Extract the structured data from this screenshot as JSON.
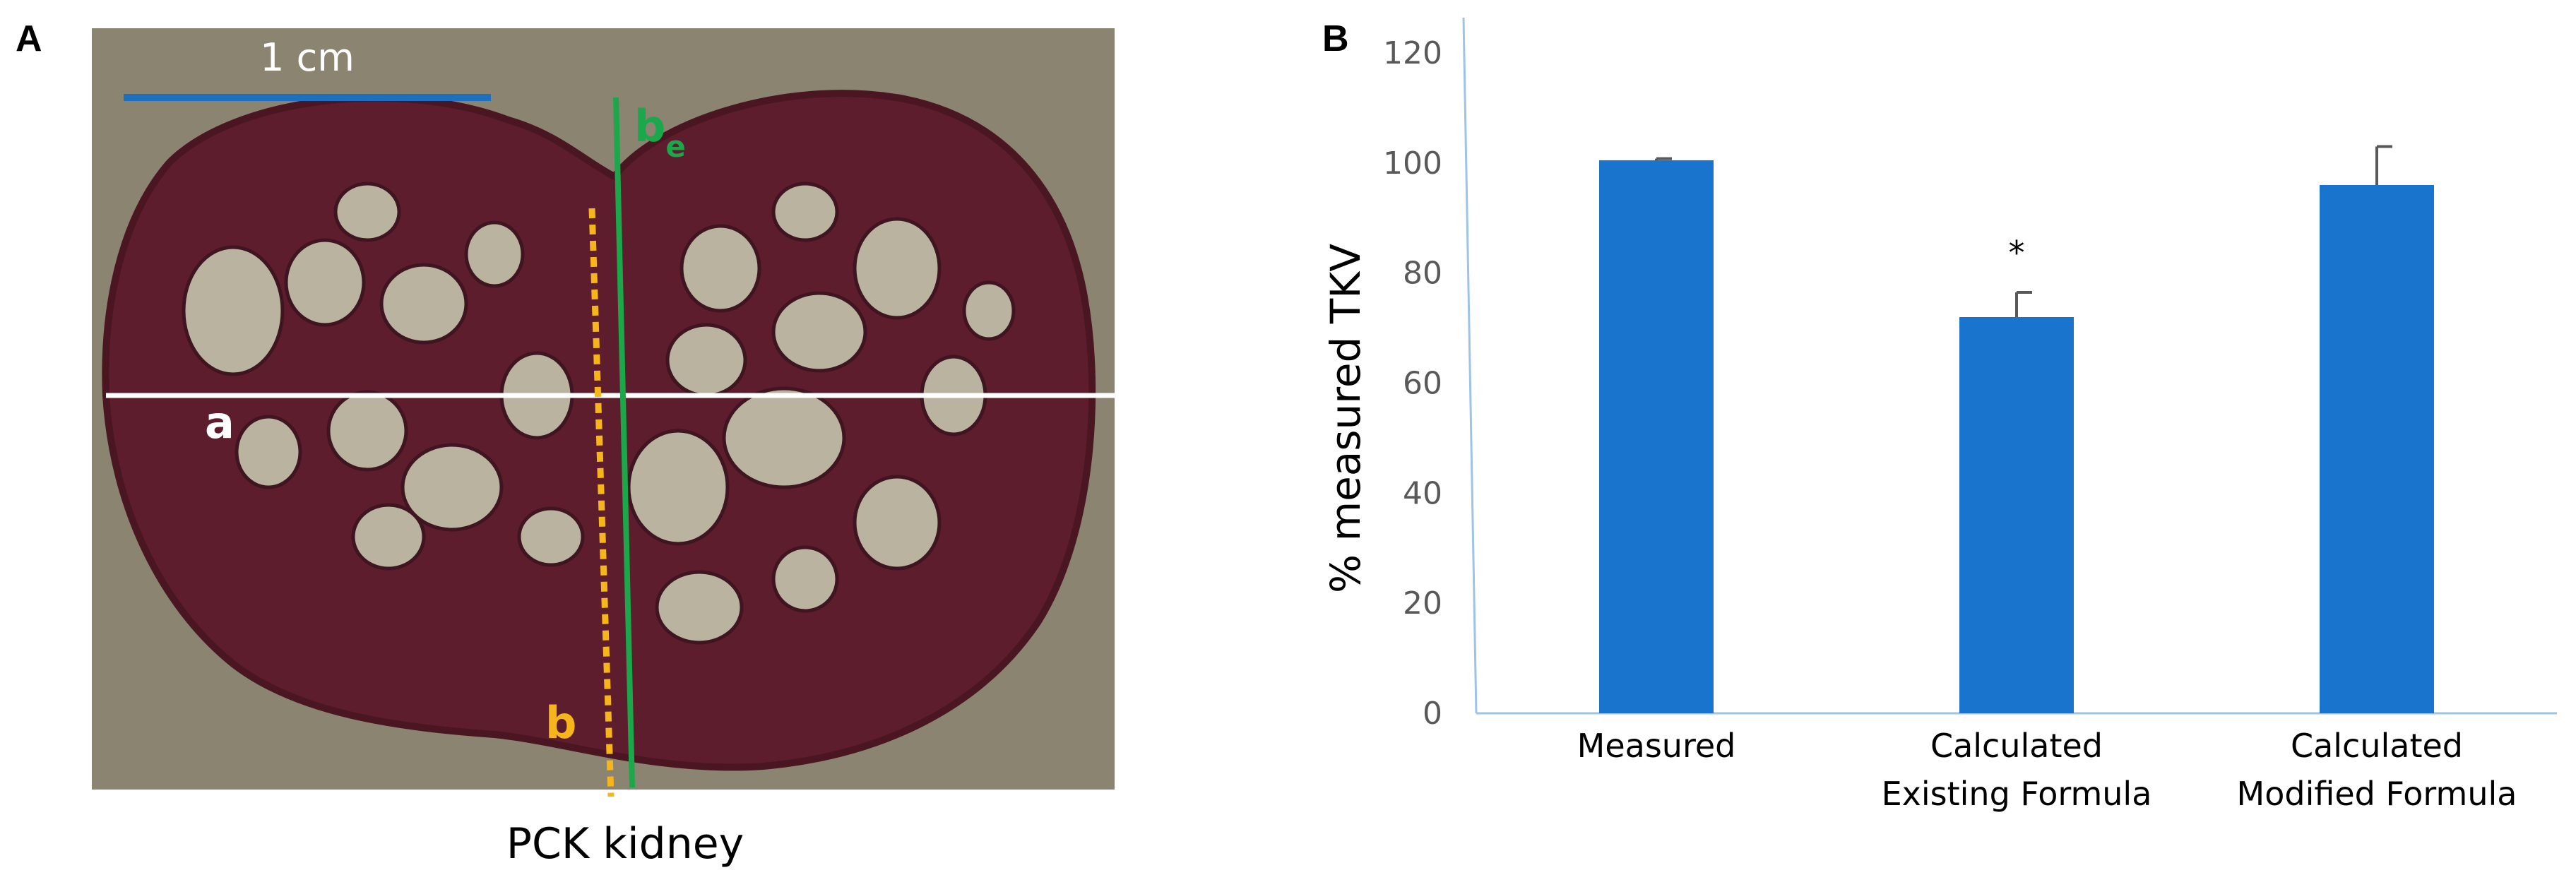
{
  "panel_a": {
    "panel_label": "A",
    "caption": "PCK kidney",
    "scale_bar_label": "1 cm",
    "line_label_a": "a",
    "line_label_b": "b",
    "line_label_be_main": "b",
    "line_label_be_sub": "e",
    "colors": {
      "line_a": "#ffffff",
      "line_b": "#f5b51b",
      "line_be": "#1aa84a",
      "scale_bar": "#1f6fbf",
      "background": "#8b8471",
      "tissue": "#5e1d2c",
      "cyst": "#b9b39f"
    }
  },
  "panel_b": {
    "panel_label": "B",
    "significance_marker": "*",
    "bar_color": "#1874cd",
    "error_color": "#595959",
    "axis_color": "#9dc3e6"
  },
  "chart_data": {
    "type": "bar",
    "categories": [
      "Measured",
      "Calculated Existing Formula",
      "Calculated Modified Formula"
    ],
    "category_lines": [
      [
        "Measured"
      ],
      [
        "Calculated",
        "Existing Formula"
      ],
      [
        "Calculated",
        "Modified Formula"
      ]
    ],
    "values": [
      100.5,
      72,
      96
    ],
    "errors": [
      0.3,
      4.5,
      7
    ],
    "significant": [
      false,
      true,
      false
    ],
    "ylabel": "% measured TKV",
    "xlabel": "",
    "ylim": [
      0,
      120
    ],
    "yticks": [
      0,
      20,
      40,
      60,
      80,
      100,
      120
    ],
    "grid": false
  }
}
